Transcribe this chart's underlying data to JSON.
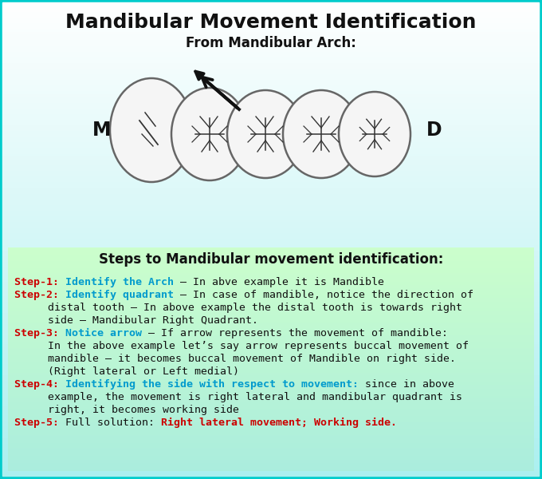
{
  "title": "Mandibular Movement Identification",
  "subtitle": "From Mandibular Arch:",
  "border_color": "#00d0d0",
  "bg_top": "#ffffff",
  "bg_bottom": "#aaf0f0",
  "green_box_top": "#ccffcc",
  "green_box_bottom": "#aaeedd",
  "steps_title": "Steps to Mandibular movement identification:",
  "M_label": "M",
  "D_label": "D",
  "step1_red": "Step-1: ",
  "step1_cyan": "Identify the Arch",
  "step1_black": " – In abve example it is Mandible",
  "step2_red": "Step-2: ",
  "step2_cyan": "Identify quadrant",
  "step2_black": " – In case of mandible, notice the direction of",
  "step2_cont1": "   distal tooth – In above example the distal tooth is towards right",
  "step2_cont2": "   side – Mandibular Right Quadrant.",
  "step3_red": "Step-3: ",
  "step3_cyan": "Notice arrow",
  "step3_black": " – If arrow represents the movement of mandible:",
  "step3_cont1": "   In the above example let’s say arrow represents buccal movement of",
  "step3_cont2": "   mandible – it becomes buccal movement of Mandible on right side.",
  "step3_cont3": "   (Right lateral or Left medial)",
  "step4_red": "Step-4: ",
  "step4_cyan": "Identifying the side with respect to movement:",
  "step4_black": " since in above",
  "step4_cont1": "   example, the movement is right lateral and mandibular quadrant is",
  "step4_cont2": "   right, it becomes working side",
  "step5_red": "Step-5: ",
  "step5_black": "Full solution: ",
  "step5_red2": "Right lateral movement; Working side.",
  "red": "#cc0000",
  "cyan": "#009acd",
  "black": "#111111",
  "fontsize_title": 18,
  "fontsize_subtitle": 12,
  "fontsize_steps_title": 12,
  "fontsize_body": 9.5
}
